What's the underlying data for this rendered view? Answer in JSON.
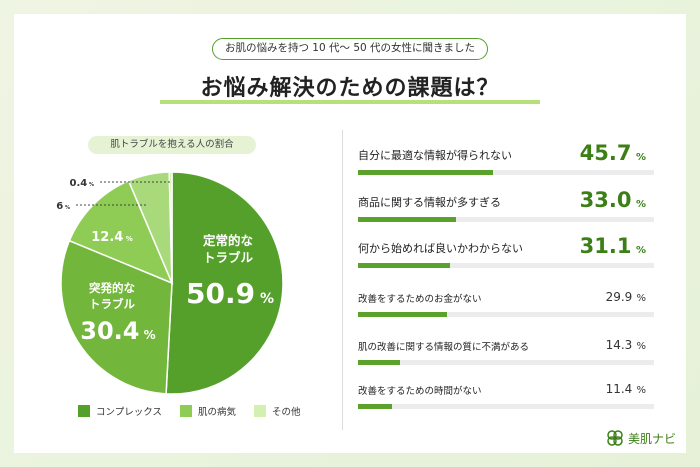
{
  "header": {
    "subtitle": "お肌の悩みを持つ 10 代〜 50 代の女性に聞きました",
    "title": "お悩み解決のための課題は？"
  },
  "pie_caption": "肌トラブルを抱える人の割合",
  "legend": [
    {
      "name": "コンプレックス",
      "color": "#55a02b"
    },
    {
      "name": "肌の病気",
      "color": "#8fcc55"
    },
    {
      "name": "その他",
      "color": "#d3efb1"
    }
  ],
  "logo_text": "美肌ナビ",
  "chart_data": [
    {
      "type": "pie",
      "title": "肌トラブルを抱える人の割合",
      "unit": "%",
      "slices": [
        {
          "label": "定常的なトラブル",
          "value": 50.9,
          "color": "#55a02b"
        },
        {
          "label": "突発的なトラブル",
          "value": 30.4,
          "color": "#72b63b"
        },
        {
          "label": "",
          "value": 12.4,
          "color": "#8fcc55"
        },
        {
          "label": "",
          "value": 6,
          "color": "#a8d97a"
        },
        {
          "label": "",
          "value": 0.4,
          "color": "#d3efb1"
        }
      ],
      "value_labels": [
        "50.9",
        "30.4",
        "12.4",
        "6",
        "0.4"
      ],
      "slice_label_lines": [
        [
          "定常的な",
          "トラブル"
        ],
        [
          "突発的な",
          "トラブル"
        ]
      ]
    },
    {
      "type": "bar",
      "orientation": "horizontal",
      "unit": "%",
      "categories": [
        "自分に最適な情報が得られない",
        "商品に関する情報が多すぎる",
        "何から始めれば良いかわからない",
        "改善をするためのお金がない",
        "肌の改善に関する情報の質に不満がある",
        "改善をするための時間がない"
      ],
      "values": [
        45.7,
        33.0,
        31.1,
        29.9,
        14.3,
        11.4
      ],
      "value_labels": [
        "45.7",
        "33.0",
        "31.1",
        "29.9",
        "14.3",
        "11.4"
      ],
      "xlim": [
        0,
        100
      ]
    }
  ]
}
